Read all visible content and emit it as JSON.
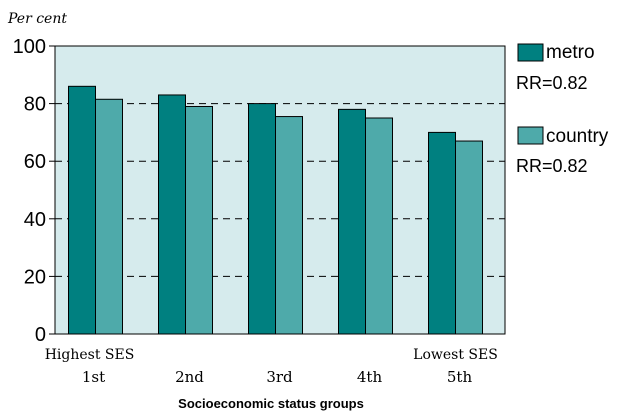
{
  "chart_data": {
    "type": "bar",
    "ylabel": "Per cent",
    "xlabel": "Socioeconomic status groups",
    "ylim": [
      0,
      100
    ],
    "yticks": [
      0,
      20,
      40,
      60,
      80,
      100
    ],
    "gridlines": "dashed",
    "legend_position": "right",
    "plot_background": "#d6ebed",
    "categories": [
      {
        "top": "Highest SES",
        "label": "1st"
      },
      {
        "top": "",
        "label": "2nd"
      },
      {
        "top": "",
        "label": "3rd"
      },
      {
        "top": "",
        "label": "4th"
      },
      {
        "top": "Lowest SES",
        "label": "5th"
      }
    ],
    "series": [
      {
        "name": "metro",
        "note": "RR=0.82",
        "color": "#008080",
        "values": [
          86,
          83,
          80,
          78,
          70
        ]
      },
      {
        "name": "country",
        "note": "RR=0.82",
        "color": "#4eaaaa",
        "values": [
          81.5,
          79,
          75.5,
          75,
          67
        ]
      }
    ]
  }
}
